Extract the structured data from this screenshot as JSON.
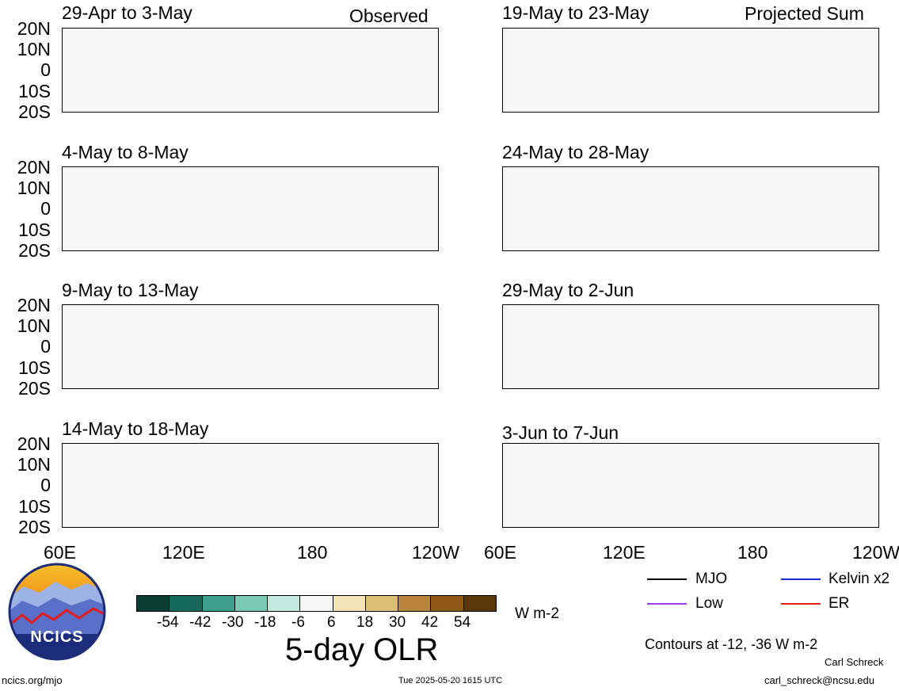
{
  "header": {
    "left": "Observed",
    "right": "Projected Sum"
  },
  "panels_left": [
    {
      "title": "29-Apr to 3-May"
    },
    {
      "title": "4-May to 8-May"
    },
    {
      "title": "9-May to 13-May"
    },
    {
      "title": "14-May to 18-May"
    }
  ],
  "panels_right": [
    {
      "title": "19-May to 23-May"
    },
    {
      "title": "24-May to 28-May"
    },
    {
      "title": "29-May to 2-Jun"
    },
    {
      "title": "3-Jun to 7-Jun"
    }
  ],
  "lat_labels": [
    "20N",
    "10N",
    "0",
    "10S",
    "20S"
  ],
  "lon_labels": [
    "60E",
    "120E",
    "180",
    "120W"
  ],
  "colorbar": {
    "ticks": [
      "-54",
      "-42",
      "-30",
      "-18",
      "-6",
      "6",
      "18",
      "30",
      "42",
      "54"
    ],
    "colors": [
      "#0b3d33",
      "#14695c",
      "#3d9e8d",
      "#79c9b6",
      "#c3e8de",
      "#f7f7f7",
      "#f3e3b7",
      "#ddbf7a",
      "#b8853a",
      "#8f5a16",
      "#5a380a"
    ],
    "units": "W m-2",
    "title": "5-day OLR"
  },
  "legend": {
    "items": [
      {
        "label": "MJO",
        "color": "#000000"
      },
      {
        "label": "Kelvin x2",
        "color": "#1a2bd6"
      },
      {
        "label": "Low",
        "color": "#9b3fe8"
      },
      {
        "label": "ER",
        "color": "#e01d1d"
      }
    ],
    "contours_note": "Contours at -12, -36 W m-2"
  },
  "logo": {
    "text": "NCICS"
  },
  "footer": {
    "url": "ncics.org/mjo",
    "timestamp": "Tue 2025-05-20 1615 UTC",
    "author": "Carl Schreck",
    "email": "carl_schreck@ncsu.edu"
  }
}
